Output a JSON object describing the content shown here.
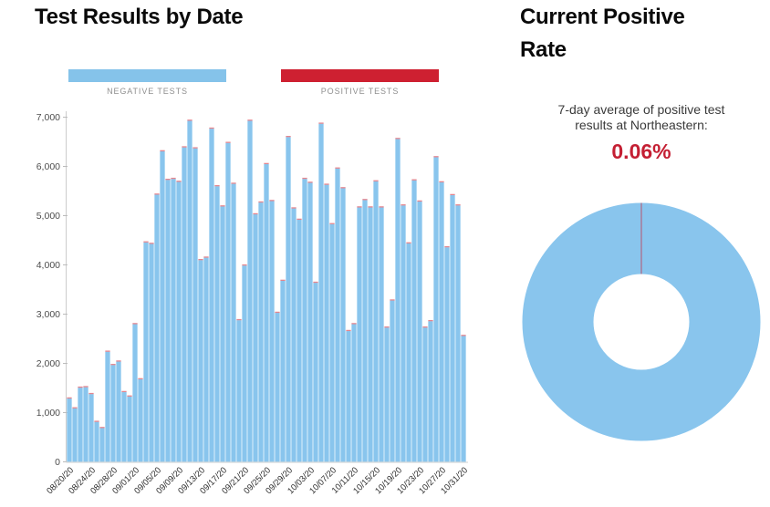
{
  "left_chart": {
    "title": "Test Results by Date",
    "legend": [
      {
        "label": "NEGATIVE TESTS",
        "color": "#85C3EA"
      },
      {
        "label": "POSITIVE TESTS",
        "color": "#CE2031"
      }
    ]
  },
  "right_panel": {
    "title": "Current Positive Rate",
    "subtitle_line1": "7-day average of positive test",
    "subtitle_line2": "results at Northeastern:",
    "rate_value": "0.06%",
    "rate_color": "#C41F33"
  },
  "chart_data": [
    {
      "type": "bar",
      "stacked": true,
      "title": "Test Results by Date",
      "categories": [
        "08/20/20",
        "08/21/20",
        "08/22/20",
        "08/23/20",
        "08/24/20",
        "08/25/20",
        "08/26/20",
        "08/27/20",
        "08/28/20",
        "08/29/20",
        "08/30/20",
        "08/31/20",
        "09/01/20",
        "09/02/20",
        "09/03/20",
        "09/04/20",
        "09/05/20",
        "09/06/20",
        "09/07/20",
        "09/08/20",
        "09/09/20",
        "09/10/20",
        "09/11/20",
        "09/12/20",
        "09/13/20",
        "09/14/20",
        "09/15/20",
        "09/16/20",
        "09/17/20",
        "09/18/20",
        "09/19/20",
        "09/20/20",
        "09/21/20",
        "09/22/20",
        "09/23/20",
        "09/24/20",
        "09/25/20",
        "09/26/20",
        "09/27/20",
        "09/28/20",
        "09/29/20",
        "09/30/20",
        "10/01/20",
        "10/02/20",
        "10/03/20",
        "10/04/20",
        "10/05/20",
        "10/06/20",
        "10/07/20",
        "10/08/20",
        "10/09/20",
        "10/10/20",
        "10/11/20",
        "10/12/20",
        "10/13/20",
        "10/14/20",
        "10/15/20",
        "10/16/20",
        "10/17/20",
        "10/18/20",
        "10/19/20",
        "10/20/20",
        "10/21/20",
        "10/22/20",
        "10/23/20",
        "10/24/20",
        "10/25/20",
        "10/26/20",
        "10/27/20",
        "10/28/20",
        "10/29/20",
        "10/30/20",
        "10/31/20"
      ],
      "series": [
        {
          "name": "NEGATIVE TESTS",
          "color": "#89C5ED",
          "values": [
            1310,
            1110,
            1530,
            1540,
            1400,
            835,
            710,
            2260,
            1990,
            2060,
            1440,
            1350,
            2820,
            1700,
            4480,
            4450,
            5450,
            6330,
            5750,
            5770,
            5710,
            6410,
            6950,
            6390,
            4120,
            4170,
            6790,
            5620,
            5210,
            6500,
            5670,
            2900,
            4010,
            6950,
            5050,
            5290,
            6070,
            5320,
            3050,
            3700,
            6620,
            5170,
            4940,
            5770,
            5690,
            3660,
            6890,
            5650,
            4850,
            5980,
            5580,
            2680,
            2820,
            5190,
            5340,
            5190,
            5720,
            5190,
            2750,
            3300,
            6580,
            5230,
            4460,
            5740,
            5310,
            2750,
            2880,
            6210,
            5700,
            4380,
            5440,
            5230,
            2580
          ]
        },
        {
          "name": "POSITIVE TESTS",
          "color": "#CE2031",
          "values": [
            10,
            10,
            10,
            10,
            10,
            10,
            10,
            10,
            10,
            10,
            10,
            10,
            10,
            10,
            10,
            10,
            10,
            10,
            10,
            10,
            10,
            10,
            10,
            10,
            10,
            10,
            10,
            10,
            10,
            10,
            10,
            10,
            10,
            10,
            10,
            10,
            10,
            10,
            10,
            10,
            10,
            10,
            10,
            10,
            10,
            10,
            10,
            10,
            10,
            10,
            10,
            10,
            10,
            10,
            10,
            10,
            10,
            10,
            10,
            10,
            10,
            10,
            10,
            10,
            10,
            10,
            10,
            10,
            10,
            10,
            10,
            10,
            10
          ]
        }
      ],
      "ylim": [
        0,
        7000
      ],
      "y_ticks": [
        0,
        1000,
        2000,
        3000,
        4000,
        5000,
        6000,
        7000
      ],
      "y_tick_labels": [
        "0",
        "1,000",
        "2,000",
        "3,000",
        "4,000",
        "5,000",
        "6,000",
        "7,000"
      ],
      "x_label_every": 4,
      "grid": false,
      "legend_position": "top"
    },
    {
      "type": "pie",
      "subtype": "donut",
      "title": "Current Positive Rate",
      "labels": [
        "Negative tests",
        "Positive tests"
      ],
      "values": [
        99.94,
        0.06
      ],
      "colors": [
        "#89C5ED",
        "#CE2031"
      ]
    }
  ]
}
